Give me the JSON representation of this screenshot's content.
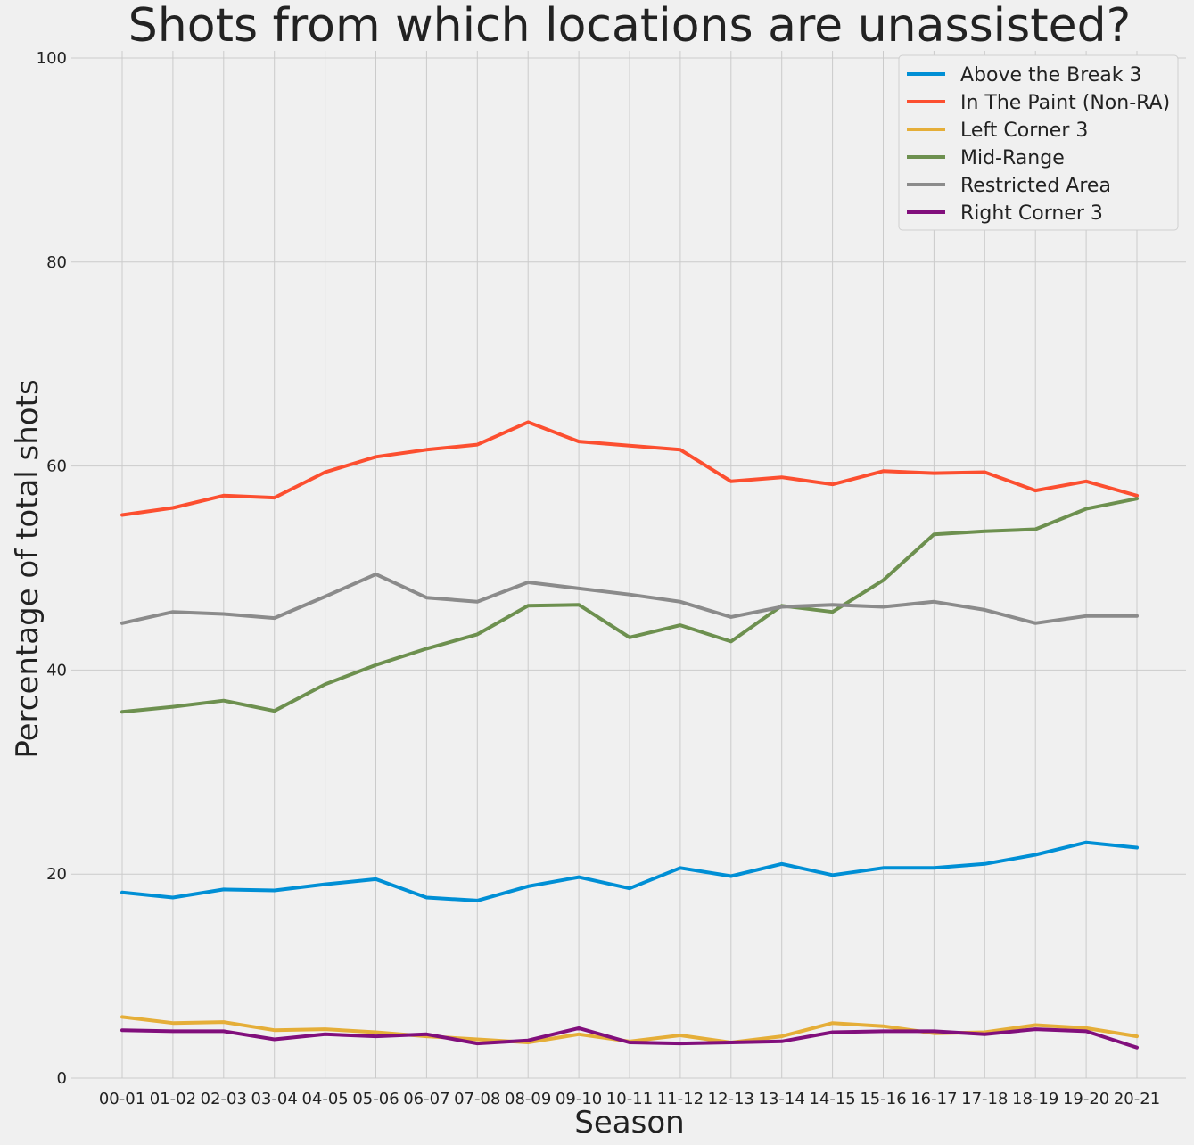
{
  "chart_data": {
    "type": "line",
    "title": "Shots from which locations are unassisted?",
    "xlabel": "Season",
    "ylabel": "Percentage of total shots",
    "ylim": [
      0,
      100
    ],
    "yticks": [
      0,
      20,
      40,
      60,
      80,
      100
    ],
    "grid": true,
    "legend_position": "top-right",
    "categories": [
      "00-01",
      "01-02",
      "02-03",
      "03-04",
      "04-05",
      "05-06",
      "06-07",
      "07-08",
      "08-09",
      "09-10",
      "10-11",
      "11-12",
      "12-13",
      "13-14",
      "14-15",
      "15-16",
      "16-17",
      "17-18",
      "18-19",
      "19-20",
      "20-21"
    ],
    "series": [
      {
        "name": "Above the Break 3",
        "color": "#008fd5",
        "values": [
          18.2,
          17.7,
          18.5,
          18.4,
          19.0,
          19.5,
          17.7,
          17.4,
          18.8,
          19.7,
          18.6,
          20.6,
          19.8,
          21.0,
          19.9,
          20.6,
          20.6,
          21.0,
          21.9,
          23.1,
          22.6
        ]
      },
      {
        "name": "In The Paint (Non-RA)",
        "color": "#fc4f30",
        "values": [
          55.2,
          55.9,
          57.1,
          56.9,
          59.4,
          60.9,
          61.6,
          62.1,
          64.3,
          62.4,
          62.0,
          61.6,
          58.5,
          58.9,
          58.2,
          59.5,
          59.3,
          59.4,
          57.6,
          58.5,
          57.1
        ]
      },
      {
        "name": "Left Corner 3",
        "color": "#e5ae38",
        "values": [
          6.0,
          5.4,
          5.5,
          4.7,
          4.8,
          4.5,
          4.1,
          3.8,
          3.5,
          4.3,
          3.6,
          4.2,
          3.5,
          4.1,
          5.4,
          5.1,
          4.4,
          4.5,
          5.2,
          4.9,
          4.1
        ]
      },
      {
        "name": "Mid-Range",
        "color": "#6d904f",
        "values": [
          35.9,
          36.4,
          37.0,
          36.0,
          38.6,
          40.5,
          42.1,
          43.5,
          46.3,
          46.4,
          43.2,
          44.4,
          42.8,
          46.3,
          45.7,
          48.8,
          53.3,
          53.6,
          53.8,
          55.8,
          56.8
        ]
      },
      {
        "name": "Restricted Area",
        "color": "#8b8b8b",
        "values": [
          44.6,
          45.7,
          45.5,
          45.1,
          47.2,
          49.4,
          47.1,
          46.7,
          48.6,
          48.0,
          47.4,
          46.7,
          45.2,
          46.2,
          46.4,
          46.2,
          46.7,
          45.9,
          44.6,
          45.3,
          45.3
        ]
      },
      {
        "name": "Right Corner 3",
        "color": "#810f7c",
        "values": [
          4.7,
          4.6,
          4.6,
          3.8,
          4.3,
          4.1,
          4.3,
          3.4,
          3.7,
          4.9,
          3.5,
          3.4,
          3.5,
          3.6,
          4.5,
          4.6,
          4.6,
          4.3,
          4.8,
          4.6,
          3.0
        ]
      }
    ]
  }
}
